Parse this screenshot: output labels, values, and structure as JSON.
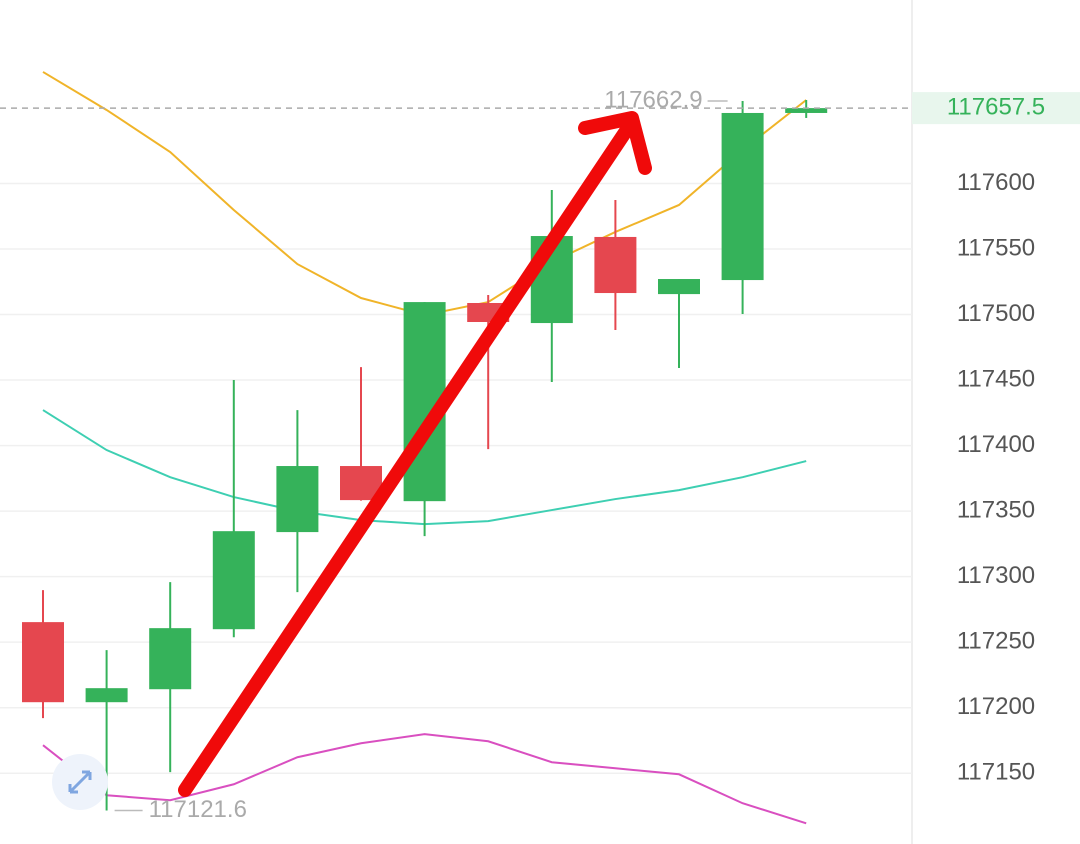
{
  "chart_data": {
    "type": "candlestick",
    "open": [
      117265.3,
      117204.2,
      117214.1,
      117259.9,
      117334.0,
      117384.4,
      117357.6,
      117508.8,
      117493.5,
      117559.2,
      117515.6,
      117526.3,
      117653.8
    ],
    "high": [
      117289.7,
      117243.9,
      117295.8,
      117450.0,
      117427.1,
      117459.9,
      117509.5,
      117514.9,
      117595.0,
      117587.4,
      117527.1,
      117662.9,
      117663.7
    ],
    "low": [
      117192.0,
      117121.6,
      117150.8,
      117253.8,
      117288.2,
      117358.0,
      117330.9,
      117397.3,
      117448.5,
      117488.2,
      117459.2,
      117500.4,
      117650.0
    ],
    "close": [
      117204.2,
      117214.9,
      117260.7,
      117334.7,
      117384.4,
      117358.4,
      117509.5,
      117494.3,
      117559.9,
      117516.4,
      117527.1,
      117653.8,
      117657.5
    ],
    "up_color": "#35b25a",
    "down_color": "#e5474f",
    "lines": [
      {
        "color": "#f0b429",
        "values": [
          117685.1,
          117656.1,
          117624.0,
          117579.8,
          117538.5,
          117512.6,
          117499.6,
          117509.5,
          117540.1,
          117563.0,
          117583.6,
          117625.6,
          117663.7
        ]
      },
      {
        "color": "#3ecfb2",
        "values": [
          117427.1,
          117396.6,
          117375.9,
          117360.7,
          117350.0,
          117343.1,
          117340.1,
          117342.4,
          117350.8,
          117359.2,
          117366.0,
          117375.9,
          117388.2
        ]
      },
      {
        "color": "#d94fc0",
        "values": [
          117171.4,
          117133.2,
          117129.4,
          117141.6,
          117162.2,
          117172.9,
          117179.8,
          117174.4,
          117158.4,
          117153.8,
          117149.2,
          117127.1,
          117111.8
        ]
      }
    ],
    "ylim": [
      117096,
      117740
    ],
    "yticks": [
      117150,
      117200,
      117250,
      117300,
      117350,
      117400,
      117450,
      117500,
      117550,
      117600
    ],
    "grid": true
  }
}
